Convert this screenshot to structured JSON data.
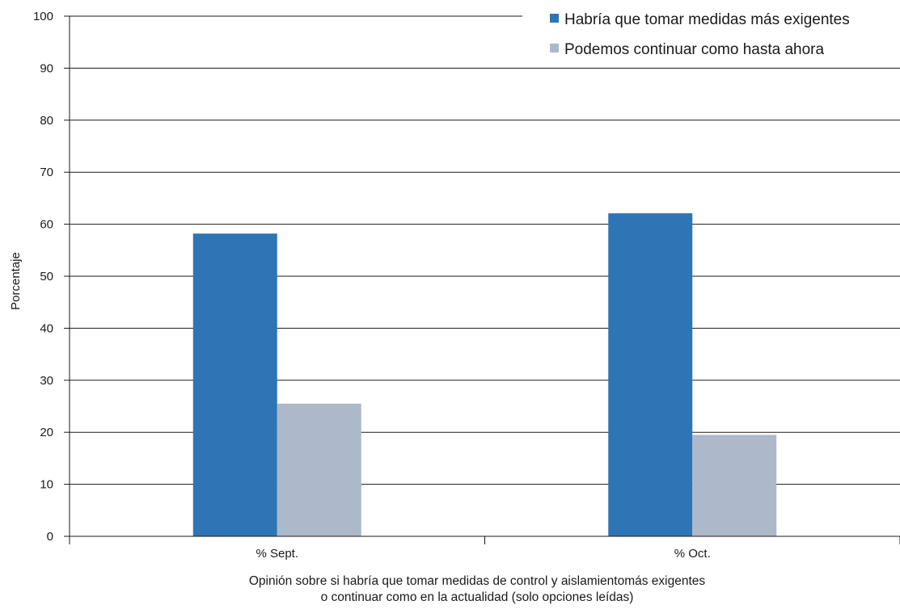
{
  "chart_data": {
    "type": "bar",
    "categories": [
      "% Sept.",
      "% Oct."
    ],
    "series": [
      {
        "name": "Habría que tomar medidas más exigentes",
        "values": [
          58.2,
          62.1
        ]
      },
      {
        "name": "Podemos continuar como hasta ahora",
        "values": [
          25.5,
          19.5
        ]
      }
    ],
    "ylim": [
      0,
      100
    ],
    "yticks": [
      0,
      10,
      20,
      30,
      40,
      50,
      60,
      70,
      80,
      90,
      100
    ],
    "ylabel": "Porcentaje",
    "xlabel_lines": [
      "Opinión sobre si habría que tomar medidas de control y aislamientomás exigentes",
      "o continuar como en la actualidad (solo opciones leídas)"
    ],
    "grid": true,
    "legend_position": "top-right",
    "colors": [
      "#2e75b6",
      "#adb9ca"
    ]
  }
}
